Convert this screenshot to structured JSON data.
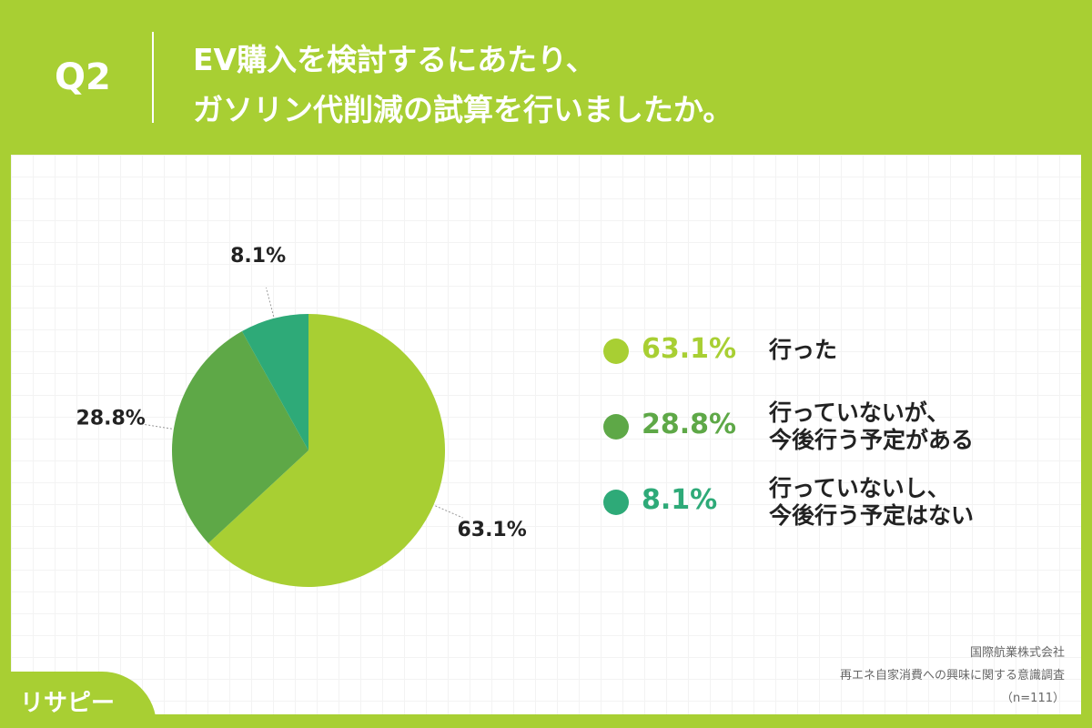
{
  "question": "Q2",
  "chart_data": {
    "type": "pie",
    "title": "EV購入を検討するにあたり、\nガソリン代削減の試算を行いましたか。",
    "categories": [
      "行った",
      "行っていないが、\n今後行う予定がある",
      "行っていないし、\n今後行う予定はない"
    ],
    "values": [
      63.1,
      28.8,
      8.1
    ],
    "value_labels": [
      "63.1%",
      "28.8%",
      "8.1%"
    ],
    "colors": [
      "#a8cf33",
      "#5ea847",
      "#2eaa78"
    ]
  },
  "footer": [
    "国際航業株式会社",
    "再エネ自家消費への興味に関する意識調査",
    "（n=111）"
  ],
  "brand": "リサピー"
}
